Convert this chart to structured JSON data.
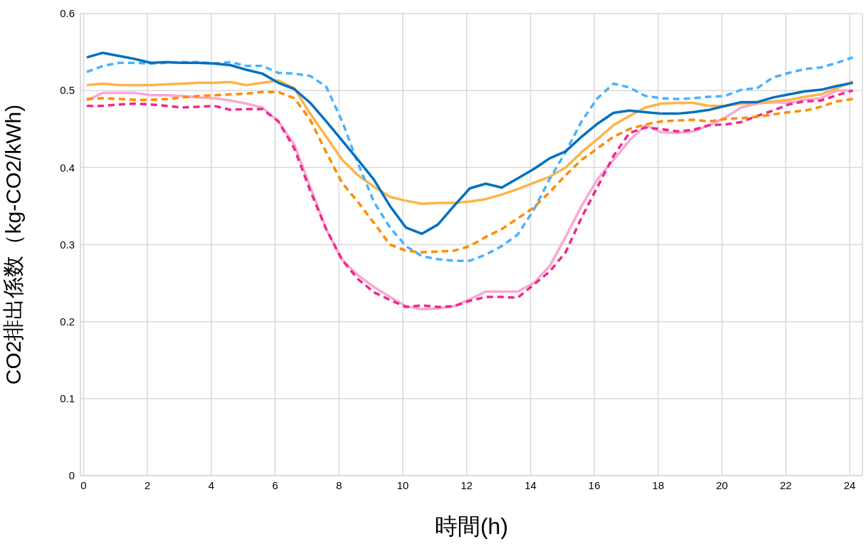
{
  "chart_data": {
    "type": "line",
    "xlabel": "時間(h)",
    "ylabel": "CO2排出係数（kg-CO2/kWh)",
    "x": [
      0.1,
      0.6,
      1.1,
      1.6,
      2.1,
      2.6,
      3.1,
      3.6,
      4.1,
      4.6,
      5.1,
      5.6,
      6.1,
      6.6,
      7.1,
      7.6,
      8.1,
      8.6,
      9.1,
      9.6,
      10.1,
      10.6,
      11.1,
      11.6,
      12.1,
      12.6,
      13.1,
      13.6,
      14.1,
      14.6,
      15.1,
      15.6,
      16.1,
      16.6,
      17.1,
      17.6,
      18.1,
      18.6,
      19.1,
      19.6,
      20.1,
      20.6,
      21.1,
      21.6,
      22.1,
      22.6,
      23.1,
      23.6,
      24.1
    ],
    "series": [
      {
        "color": "#f9a8d4",
        "line_style": "solid",
        "values": [
          0.487,
          0.497,
          0.497,
          0.497,
          0.494,
          0.494,
          0.493,
          0.491,
          0.49,
          0.487,
          0.483,
          0.478,
          0.46,
          0.43,
          0.375,
          0.32,
          0.28,
          0.26,
          0.245,
          0.232,
          0.22,
          0.216,
          0.217,
          0.22,
          0.229,
          0.239,
          0.239,
          0.239,
          0.25,
          0.272,
          0.31,
          0.35,
          0.385,
          0.41,
          0.435,
          0.455,
          0.446,
          0.445,
          0.447,
          0.455,
          0.465,
          0.478,
          0.483,
          0.485,
          0.484,
          0.488,
          0.49,
          0.5,
          0.5
        ]
      },
      {
        "color": "#f0288c",
        "line_style": "dashed",
        "values": [
          0.48,
          0.48,
          0.482,
          0.483,
          0.482,
          0.48,
          0.478,
          0.479,
          0.48,
          0.475,
          0.476,
          0.476,
          0.46,
          0.425,
          0.37,
          0.32,
          0.28,
          0.255,
          0.238,
          0.228,
          0.219,
          0.221,
          0.219,
          0.22,
          0.227,
          0.232,
          0.232,
          0.231,
          0.248,
          0.265,
          0.29,
          0.335,
          0.375,
          0.415,
          0.445,
          0.452,
          0.45,
          0.447,
          0.449,
          0.455,
          0.456,
          0.459,
          0.467,
          0.474,
          0.482,
          0.486,
          0.487,
          0.494,
          0.5
        ]
      },
      {
        "color": "#ffb347",
        "line_style": "solid",
        "values": [
          0.507,
          0.509,
          0.507,
          0.507,
          0.507,
          0.508,
          0.509,
          0.51,
          0.51,
          0.511,
          0.507,
          0.51,
          0.513,
          0.503,
          0.47,
          0.44,
          0.41,
          0.39,
          0.375,
          0.362,
          0.357,
          0.353,
          0.354,
          0.354,
          0.356,
          0.359,
          0.365,
          0.372,
          0.38,
          0.388,
          0.4,
          0.42,
          0.437,
          0.455,
          0.467,
          0.478,
          0.483,
          0.484,
          0.484,
          0.48,
          0.48,
          0.483,
          0.484,
          0.486,
          0.488,
          0.492,
          0.495,
          0.503,
          0.512
        ]
      },
      {
        "color": "#ff8c00",
        "line_style": "dashed",
        "values": [
          0.489,
          0.49,
          0.489,
          0.488,
          0.488,
          0.489,
          0.491,
          0.493,
          0.494,
          0.495,
          0.496,
          0.498,
          0.498,
          0.49,
          0.462,
          0.42,
          0.38,
          0.355,
          0.328,
          0.3,
          0.292,
          0.29,
          0.291,
          0.292,
          0.298,
          0.31,
          0.32,
          0.334,
          0.348,
          0.368,
          0.39,
          0.41,
          0.425,
          0.44,
          0.45,
          0.456,
          0.46,
          0.461,
          0.462,
          0.46,
          0.463,
          0.464,
          0.466,
          0.469,
          0.472,
          0.474,
          0.479,
          0.486,
          0.489
        ]
      },
      {
        "color": "#47b3ff",
        "line_style": "dashed",
        "values": [
          0.524,
          0.532,
          0.536,
          0.536,
          0.535,
          0.536,
          0.537,
          0.537,
          0.535,
          0.537,
          0.532,
          0.532,
          0.523,
          0.522,
          0.519,
          0.505,
          0.46,
          0.405,
          0.355,
          0.322,
          0.298,
          0.285,
          0.281,
          0.279,
          0.279,
          0.287,
          0.298,
          0.313,
          0.345,
          0.385,
          0.42,
          0.46,
          0.49,
          0.509,
          0.504,
          0.493,
          0.49,
          0.489,
          0.49,
          0.492,
          0.493,
          0.501,
          0.503,
          0.517,
          0.523,
          0.528,
          0.53,
          0.536,
          0.543
        ]
      },
      {
        "color": "#0070c0",
        "line_style": "solid",
        "values": [
          0.543,
          0.549,
          0.545,
          0.541,
          0.536,
          0.537,
          0.536,
          0.536,
          0.535,
          0.533,
          0.527,
          0.522,
          0.51,
          0.502,
          0.484,
          0.46,
          0.435,
          0.41,
          0.384,
          0.35,
          0.322,
          0.314,
          0.326,
          0.35,
          0.373,
          0.379,
          0.374,
          0.386,
          0.398,
          0.412,
          0.421,
          0.44,
          0.457,
          0.471,
          0.474,
          0.472,
          0.47,
          0.47,
          0.472,
          0.475,
          0.48,
          0.485,
          0.485,
          0.491,
          0.495,
          0.499,
          0.501,
          0.506,
          0.51
        ]
      }
    ],
    "xlim": [
      -0.1,
      24.4
    ],
    "xticks": [
      0,
      2,
      4,
      6,
      8,
      10,
      12,
      14,
      16,
      18,
      20,
      22,
      24
    ],
    "ylim": [
      0,
      0.6
    ],
    "yticks": [
      0,
      0.1,
      0.2,
      0.3,
      0.4,
      0.5,
      0.6
    ],
    "grid": true,
    "marker": "none"
  }
}
